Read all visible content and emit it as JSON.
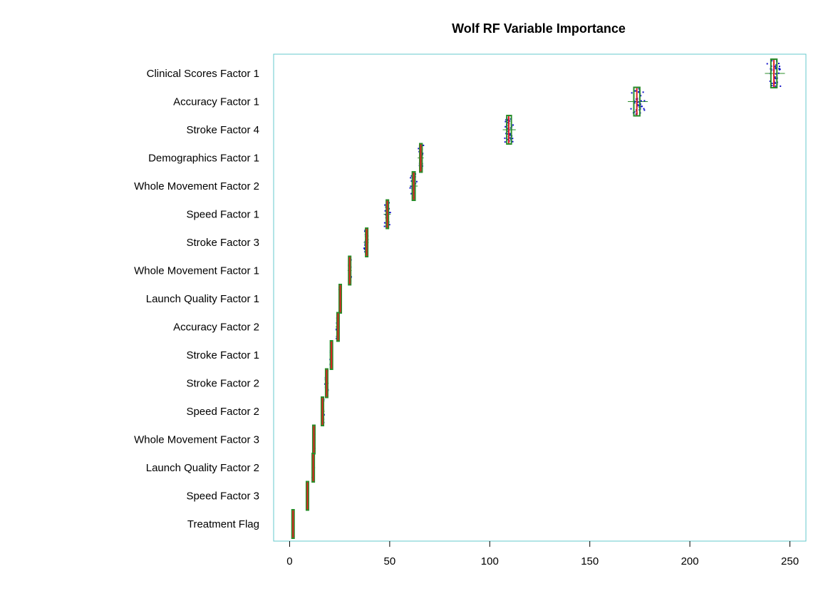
{
  "chart_data": {
    "type": "box",
    "title": "Wolf RF Variable Importance",
    "xlabel": "",
    "ylabel": "",
    "xlim": [
      -8,
      258
    ],
    "xticks": [
      0,
      50,
      100,
      150,
      200,
      250
    ],
    "grid": false,
    "legend": "none",
    "categories": [
      "Clinical Scores Factor 1",
      "Accuracy Factor 1",
      "Stroke Factor 4",
      "Demographics Factor 1",
      "Whole Movement Factor 2",
      "Speed Factor 1",
      "Stroke Factor 3",
      "Whole Movement Factor 1",
      "Launch Quality Factor 1",
      "Accuracy Factor 2",
      "Stroke Factor 1",
      "Stroke Factor 2",
      "Speed Factor 2",
      "Whole Movement Factor 3",
      "Launch Quality Factor 2",
      "Speed Factor 3",
      "Treatment Flag"
    ],
    "stats": [
      {
        "min": 237.5,
        "q1": 240.5,
        "median": 242.0,
        "q3": 243.5,
        "max": 247.5
      },
      {
        "min": 169.0,
        "q1": 172.0,
        "median": 173.5,
        "q3": 175.0,
        "max": 179.0
      },
      {
        "min": 106.5,
        "q1": 108.5,
        "median": 109.5,
        "q3": 110.8,
        "max": 113.0
      },
      {
        "min": 64.0,
        "q1": 65.0,
        "median": 65.5,
        "q3": 66.2,
        "max": 67.0
      },
      {
        "min": 60.0,
        "q1": 61.3,
        "median": 62.0,
        "q3": 62.7,
        "max": 64.0
      },
      {
        "min": 47.0,
        "q1": 48.3,
        "median": 48.8,
        "q3": 49.4,
        "max": 50.5
      },
      {
        "min": 37.0,
        "q1": 38.0,
        "median": 38.5,
        "q3": 38.9,
        "max": 39.5
      },
      {
        "min": 29.0,
        "q1": 29.7,
        "median": 30.0,
        "q3": 30.3,
        "max": 31.0
      },
      {
        "min": 24.5,
        "q1": 25.0,
        "median": 25.3,
        "q3": 25.6,
        "max": 26.0
      },
      {
        "min": 23.0,
        "q1": 23.8,
        "median": 24.2,
        "q3": 24.5,
        "max": 25.0
      },
      {
        "min": 20.0,
        "q1": 20.6,
        "median": 20.9,
        "q3": 21.1,
        "max": 21.5
      },
      {
        "min": 17.5,
        "q1": 18.1,
        "median": 18.5,
        "q3": 18.8,
        "max": 19.5
      },
      {
        "min": 15.5,
        "q1": 16.1,
        "median": 16.4,
        "q3": 16.7,
        "max": 17.5
      },
      {
        "min": 11.5,
        "q1": 11.9,
        "median": 12.1,
        "q3": 12.3,
        "max": 12.8
      },
      {
        "min": 11.0,
        "q1": 11.5,
        "median": 11.8,
        "q3": 12.0,
        "max": 12.5
      },
      {
        "min": 8.5,
        "q1": 8.7,
        "median": 8.9,
        "q3": 9.1,
        "max": 9.3
      },
      {
        "min": 1.3,
        "q1": 1.6,
        "median": 1.7,
        "q3": 1.9,
        "max": 2.2
      }
    ]
  },
  "colors": {
    "plot_border": "#66c8cc",
    "box_border": "#2a8c2a",
    "median": "#dd2222",
    "points": "#1010c8",
    "text": "#000000"
  }
}
